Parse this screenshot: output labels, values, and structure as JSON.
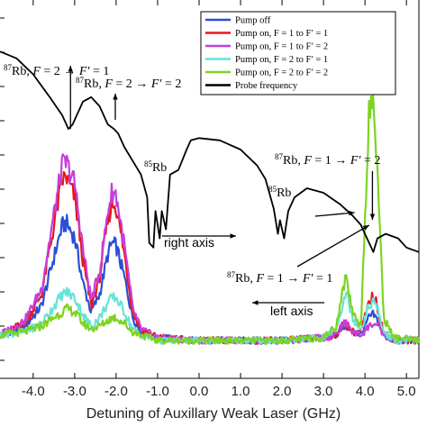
{
  "chart_data": {
    "type": "line",
    "title": "",
    "xlabel": "Detuning of Auxillary Weak Laser (GHz)",
    "ylabel": "",
    "xlim": [
      -4.8,
      5.3
    ],
    "x_ticks": [
      "-4.0",
      "-3.0",
      "-2.0",
      "-1.0",
      "0.0",
      "1.0",
      "2.0",
      "3.0",
      "4.0",
      "5.0"
    ],
    "x_tick_values": [
      -4,
      -3,
      -2,
      -1,
      0,
      1,
      2,
      3,
      4,
      5
    ],
    "legend_position": "top-right",
    "grid": false,
    "series": [
      {
        "name": "Pump off",
        "color": "#2b4fd6",
        "axis": "left",
        "x": [
          -4.8,
          -4.2,
          -3.8,
          -3.5,
          -3.3,
          -3.2,
          -3.0,
          -2.8,
          -2.6,
          -2.4,
          -2.2,
          -2.1,
          -2.0,
          -1.8,
          -1.6,
          -1.4,
          -1.0,
          0,
          1,
          2,
          3,
          3.3,
          3.5,
          3.55,
          3.7,
          3.9,
          4.1,
          4.2,
          4.3,
          4.45,
          4.7,
          5.3
        ],
        "y": [
          0.02,
          0.05,
          0.12,
          0.29,
          0.4,
          0.41,
          0.36,
          0.2,
          0.1,
          0.16,
          0.3,
          0.34,
          0.33,
          0.22,
          0.08,
          0.03,
          0.01,
          0.0,
          0.0,
          0.0,
          0.01,
          0.02,
          0.05,
          0.05,
          0.03,
          0.02,
          0.08,
          0.09,
          0.07,
          0.02,
          0.0,
          0.0
        ]
      },
      {
        "name": "Pump on, F = 1 to F′ = 1",
        "color": "#e8161b",
        "axis": "left",
        "x": [
          -4.8,
          -4.2,
          -3.8,
          -3.5,
          -3.3,
          -3.2,
          -3.0,
          -2.8,
          -2.6,
          -2.4,
          -2.2,
          -2.1,
          -2.0,
          -1.8,
          -1.6,
          -1.4,
          -1.0,
          0,
          1,
          2,
          3,
          3.3,
          3.5,
          3.55,
          3.7,
          3.9,
          4.1,
          4.2,
          4.3,
          4.45,
          4.7,
          5.3
        ],
        "y": [
          0.02,
          0.06,
          0.16,
          0.4,
          0.56,
          0.57,
          0.5,
          0.28,
          0.12,
          0.22,
          0.42,
          0.48,
          0.47,
          0.3,
          0.1,
          0.04,
          0.01,
          0.0,
          0.0,
          0.0,
          0.01,
          0.02,
          0.06,
          0.06,
          0.03,
          0.03,
          0.13,
          0.16,
          0.12,
          0.03,
          0.0,
          0.0
        ]
      },
      {
        "name": "Pump on, F = 1 to F′ = 2",
        "color": "#c53fd9",
        "axis": "left",
        "x": [
          -4.8,
          -4.2,
          -3.8,
          -3.5,
          -3.3,
          -3.2,
          -3.0,
          -2.8,
          -2.6,
          -2.4,
          -2.2,
          -2.1,
          -2.0,
          -1.8,
          -1.6,
          -1.4,
          -1.0,
          0,
          1,
          2,
          3,
          3.3,
          3.5,
          3.55,
          3.7,
          3.9,
          4.1,
          4.2,
          4.3,
          4.45,
          4.7,
          5.3
        ],
        "y": [
          0.02,
          0.07,
          0.18,
          0.44,
          0.61,
          0.62,
          0.55,
          0.32,
          0.14,
          0.24,
          0.45,
          0.52,
          0.51,
          0.33,
          0.11,
          0.04,
          0.01,
          0.0,
          0.0,
          0.0,
          0.01,
          0.02,
          0.06,
          0.06,
          0.03,
          0.02,
          0.05,
          0.06,
          0.05,
          0.02,
          0.0,
          0.0
        ]
      },
      {
        "name": "Pump on, F = 2 to F′ = 1",
        "color": "#66e3d8",
        "axis": "left",
        "x": [
          -4.8,
          -4.2,
          -3.8,
          -3.5,
          -3.3,
          -3.2,
          -3.0,
          -2.8,
          -2.6,
          -2.4,
          -2.2,
          -2.1,
          -2.0,
          -1.8,
          -1.6,
          -1.4,
          -1.0,
          0,
          1,
          2,
          3,
          3.3,
          3.5,
          3.55,
          3.7,
          3.9,
          4.1,
          4.2,
          4.3,
          4.45,
          4.7,
          5.3
        ],
        "y": [
          0.02,
          0.03,
          0.06,
          0.12,
          0.16,
          0.17,
          0.15,
          0.09,
          0.05,
          0.08,
          0.13,
          0.15,
          0.15,
          0.1,
          0.04,
          0.02,
          0.0,
          0.0,
          0.0,
          0.0,
          0.01,
          0.04,
          0.15,
          0.17,
          0.08,
          0.04,
          0.12,
          0.14,
          0.11,
          0.03,
          0.0,
          0.0
        ]
      },
      {
        "name": "Pump on, F = 2 to F′ = 2",
        "color": "#7ed321",
        "axis": "left",
        "x": [
          -4.8,
          -4.2,
          -3.8,
          -3.5,
          -3.3,
          -3.2,
          -3.0,
          -2.8,
          -2.6,
          -2.4,
          -2.2,
          -2.1,
          -2.0,
          -1.8,
          -1.6,
          -1.4,
          -1.0,
          0,
          1,
          2,
          3,
          3.3,
          3.5,
          3.55,
          3.7,
          3.9,
          4.1,
          4.2,
          4.3,
          4.45,
          4.7,
          5.3
        ],
        "y": [
          0.02,
          0.03,
          0.05,
          0.08,
          0.1,
          0.11,
          0.1,
          0.06,
          0.04,
          0.05,
          0.07,
          0.08,
          0.08,
          0.06,
          0.03,
          0.02,
          0.0,
          0.0,
          0.0,
          0.0,
          0.01,
          0.05,
          0.2,
          0.22,
          0.1,
          0.05,
          0.8,
          0.84,
          0.6,
          0.08,
          0.01,
          0.0
        ]
      },
      {
        "name": "Probe frequency",
        "color": "#000000",
        "axis": "right",
        "x": [
          -4.8,
          -4.4,
          -4.0,
          -3.6,
          -3.3,
          -3.15,
          -3.05,
          -2.8,
          -2.6,
          -2.4,
          -2.2,
          -2.05,
          -1.95,
          -1.8,
          -1.6,
          -1.4,
          -1.25,
          -1.2,
          -1.1,
          -1.05,
          -0.95,
          -0.9,
          -0.8,
          -0.7,
          -0.5,
          -0.3,
          -0.2,
          0.0,
          0.5,
          1.0,
          1.4,
          1.6,
          1.8,
          1.9,
          1.95,
          2.05,
          2.15,
          2.3,
          2.6,
          3.0,
          3.4,
          3.7,
          3.9,
          4.0,
          4.1,
          4.2,
          4.3,
          4.5,
          4.8,
          5.0,
          5.3
        ],
        "y": [
          0.94,
          0.91,
          0.84,
          0.74,
          0.66,
          0.6,
          0.62,
          0.72,
          0.74,
          0.7,
          0.62,
          0.6,
          0.58,
          0.52,
          0.46,
          0.4,
          0.3,
          0.1,
          0.08,
          0.24,
          0.12,
          0.24,
          0.16,
          0.4,
          0.42,
          0.51,
          0.55,
          0.56,
          0.55,
          0.51,
          0.44,
          0.38,
          0.25,
          0.14,
          0.2,
          0.12,
          0.24,
          0.3,
          0.34,
          0.32,
          0.27,
          0.22,
          0.18,
          0.14,
          0.1,
          0.06,
          0.12,
          0.14,
          0.12,
          0.08,
          0.06
        ]
      }
    ],
    "annotations": [
      {
        "id": "a1",
        "text_parts": [
          "87",
          "Rb, ",
          "F",
          " = 2 → ",
          "F′",
          " = 1"
        ]
      },
      {
        "id": "a2",
        "text_parts": [
          "87",
          "Rb, ",
          "F",
          " = 2 → ",
          "F′",
          " = 2"
        ]
      },
      {
        "id": "a3",
        "text_parts": [
          "85",
          "Rb",
          "",
          "",
          "",
          ""
        ]
      },
      {
        "id": "a4",
        "text_parts": [
          "85",
          "Rb",
          "",
          "",
          "",
          ""
        ]
      },
      {
        "id": "a5",
        "text_parts": [
          "87",
          "Rb, ",
          "F",
          " = 1 → ",
          "F′",
          " = 2"
        ]
      },
      {
        "id": "a6",
        "text_parts": [
          "87",
          "Rb, ",
          "F",
          " = 1 → ",
          "F′",
          " = 1"
        ]
      }
    ],
    "axis_arrows": {
      "right": "right axis",
      "left": "left axis"
    }
  }
}
